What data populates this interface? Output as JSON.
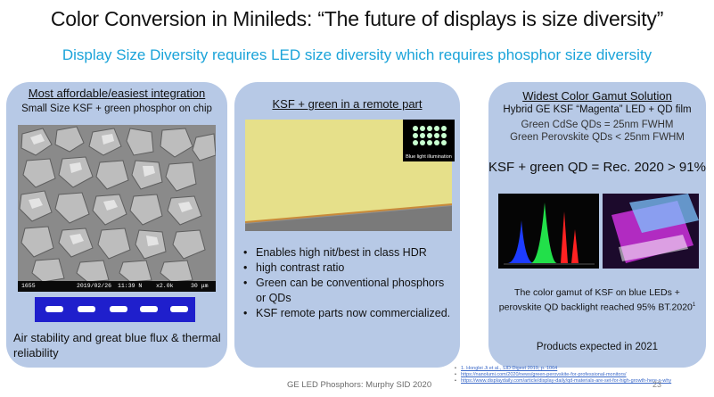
{
  "slide": {
    "title": "Color Conversion in Minileds: “The future of displays is size diversity”",
    "subtitle": "Display Size Diversity requires LED size diversity which requires phosphor size diversity"
  },
  "panel1": {
    "heading": "Most affordable/easiest integration",
    "subheading": "Small Size KSF + green phosphor on chip",
    "sem_bar": {
      "id": "1655",
      "date": "2019/02/26",
      "time": "11:39 N",
      "magnification": "x2.0k",
      "scale": "30 μm"
    },
    "footer": "Air stability and great blue flux & thermal reliability"
  },
  "panel2": {
    "heading": "KSF + green in a remote part",
    "inset_label": "Blue light illumination",
    "bullets": [
      "Enables high nit/best in class HDR",
      "high contrast ratio",
      "Green can be conventional phosphors or QDs",
      "KSF remote parts now commercialized."
    ]
  },
  "panel3": {
    "heading": "Widest Color Gamut Solution",
    "subheading": "Hybrid GE KSF “Magenta” LED + QD film",
    "qd_line1": "Green CdSe QDs = 25nm FWHM",
    "qd_line2": "Green Perovskite QDs < 25nm FWHM",
    "big_line": "KSF + green QD = Rec. 2020 > 91%",
    "gamut_text": "The color gamut of KSF on blue LEDs + perovskite QD backlight reached 95% BT.2020",
    "gamut_ref": "1",
    "expected": "Products expected in 2021"
  },
  "footer": {
    "center": "GE LED Phosphors: Murphy  SID 2020",
    "page_number": "23",
    "references": [
      "1.  Honglei Ji et al., SID Digest 2019, p. 1064",
      "https://nanolumi.com/2020/news/green-perovskite-for-professional-monitors/",
      "https://www.displaydaily.com/article/display-daily/qd-materials-are-set-for-high-growth-here-s-why"
    ]
  },
  "colors": {
    "panel_bg": "#b7c9e6",
    "subtitle": "#1aa3d9",
    "film": "#e6e08a",
    "sem_bg": "#8c8c8c",
    "blue_strip": "#1f1fcc"
  }
}
